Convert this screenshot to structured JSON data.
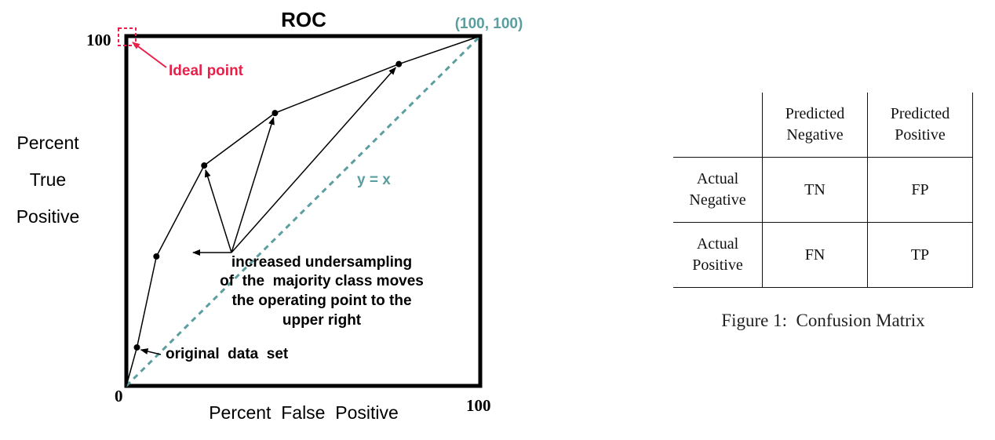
{
  "chart_data": {
    "type": "line",
    "title": "ROC",
    "xlabel": "Percent  False  Positive",
    "ylabel_lines": [
      "Percent",
      "True",
      "Positive"
    ],
    "xlim": [
      0,
      100
    ],
    "ylim": [
      0,
      100
    ],
    "tick_labels": {
      "origin": "0",
      "x_max": "100",
      "y_max": "100"
    },
    "grid": false,
    "legend": "none",
    "series": [
      {
        "values": [
          {
            "x": 0,
            "y": 0
          },
          {
            "x": 3,
            "y": 11
          },
          {
            "x": 8.5,
            "y": 37
          },
          {
            "x": 22,
            "y": 63
          },
          {
            "x": 42,
            "y": 78
          },
          {
            "x": 77,
            "y": 92
          },
          {
            "x": 100,
            "y": 100
          }
        ]
      }
    ],
    "diagonal": {
      "label": "y = x",
      "endpoint_label": "(100, 100)"
    },
    "ideal_point": {
      "x": 0,
      "y": 100,
      "label": "Ideal point"
    },
    "annotations": {
      "original": "original  data  set",
      "undersampling_lines": [
        "increased undersampling",
        "of  the  majority class moves",
        "the operating point to the",
        "upper right"
      ]
    },
    "colors": {
      "axis": "#000000",
      "curve": "#000000",
      "diagonal": "#5b9ea0",
      "ideal": "#e8204a"
    }
  },
  "confusion_matrix": {
    "col_headers": [
      [
        "Predicted",
        "Negative"
      ],
      [
        "Predicted",
        "Positive"
      ]
    ],
    "rows": [
      {
        "label": [
          "Actual",
          "Negative"
        ],
        "cells": [
          "TN",
          "FP"
        ]
      },
      {
        "label": [
          "Actual",
          "Positive"
        ],
        "cells": [
          "FN",
          "TP"
        ]
      }
    ],
    "caption": "Figure 1:  Confusion Matrix"
  }
}
